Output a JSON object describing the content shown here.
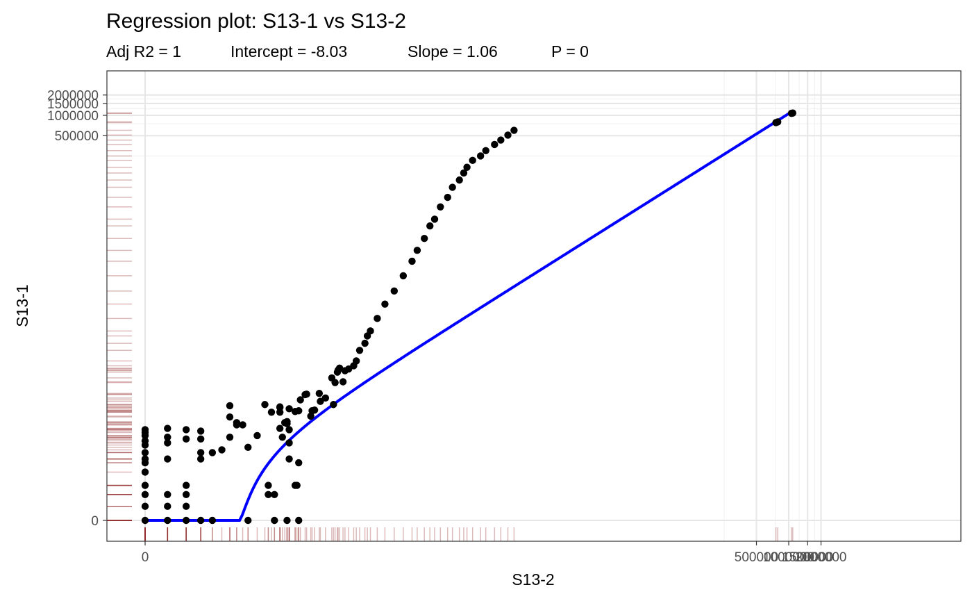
{
  "chart_data": {
    "type": "scatter",
    "title": "Regression plot: S13-1 vs S13-2",
    "subtitle": {
      "adj_r2": "Adj R2 =  1",
      "intercept": "Intercept =  -8.03",
      "slope": "Slope =  1.06",
      "p_value": "P =  0"
    },
    "xlabel": "S13-2",
    "ylabel": "S13-1",
    "scale": "pseudo-log (asinh)",
    "grid": true,
    "legend": "none",
    "x_ticks": [
      {
        "value": 0,
        "label": "0"
      },
      {
        "value": 500000,
        "label": "500000"
      },
      {
        "value": 1000000,
        "label": "1000000"
      },
      {
        "value": 1500000,
        "label": "1500000"
      },
      {
        "value": 2000000,
        "label": "2000000"
      }
    ],
    "y_ticks": [
      {
        "value": 0,
        "label": "0"
      },
      {
        "value": 500000,
        "label": "500000"
      },
      {
        "value": 1000000,
        "label": "1000000"
      },
      {
        "value": 1500000,
        "label": "1500000"
      },
      {
        "value": 2000000,
        "label": "2000000"
      }
    ],
    "regression_line": {
      "intercept": -8.03,
      "slope": 1.06,
      "color": "#0000ff"
    },
    "colors": {
      "points": "#000000",
      "rug": "#8b1a1a",
      "line": "#0000ff"
    },
    "points": [
      [
        0,
        0
      ],
      [
        0,
        1
      ],
      [
        0,
        2
      ],
      [
        0,
        3
      ],
      [
        0,
        5
      ],
      [
        0,
        7
      ],
      [
        0,
        8
      ],
      [
        0,
        10
      ],
      [
        0,
        13
      ],
      [
        0,
        15
      ],
      [
        0,
        18
      ],
      [
        0,
        20
      ],
      [
        0,
        22
      ],
      [
        1,
        0
      ],
      [
        1,
        1
      ],
      [
        1,
        2
      ],
      [
        1,
        8
      ],
      [
        1,
        14
      ],
      [
        1,
        17
      ],
      [
        1,
        23
      ],
      [
        2,
        0
      ],
      [
        2,
        1
      ],
      [
        2,
        2
      ],
      [
        2,
        3
      ],
      [
        2,
        16
      ],
      [
        2,
        22
      ],
      [
        3,
        0
      ],
      [
        3,
        8
      ],
      [
        3,
        10
      ],
      [
        3,
        16
      ],
      [
        3,
        21
      ],
      [
        4,
        0
      ],
      [
        4,
        10
      ],
      [
        5,
        11
      ],
      [
        6,
        17
      ],
      [
        6,
        34
      ],
      [
        6,
        50
      ],
      [
        7,
        28
      ],
      [
        7,
        26
      ],
      [
        8,
        26
      ],
      [
        9,
        0
      ],
      [
        9,
        12
      ],
      [
        11,
        18
      ],
      [
        14,
        2
      ],
      [
        14,
        3
      ],
      [
        13,
        52
      ],
      [
        15,
        40
      ],
      [
        16,
        2
      ],
      [
        16,
        0
      ],
      [
        18,
        40
      ],
      [
        18,
        23
      ],
      [
        18,
        47
      ],
      [
        18,
        48
      ],
      [
        21,
        0
      ],
      [
        21,
        27
      ],
      [
        22,
        22
      ],
      [
        22,
        45
      ],
      [
        19,
        17
      ],
      [
        20,
        28
      ],
      [
        21,
        29
      ],
      [
        22,
        8
      ],
      [
        22,
        14
      ],
      [
        27,
        0
      ],
      [
        25,
        3
      ],
      [
        26,
        3
      ],
      [
        25,
        41
      ],
      [
        27,
        7
      ],
      [
        27,
        42
      ],
      [
        28,
        61
      ],
      [
        31,
        73
      ],
      [
        32,
        74
      ],
      [
        35,
        35
      ],
      [
        36,
        42
      ],
      [
        38,
        43
      ],
      [
        42,
        76
      ],
      [
        43,
        58
      ],
      [
        48,
        65
      ],
      [
        55,
        129
      ],
      [
        57,
        52
      ],
      [
        59,
        110
      ],
      [
        62,
        157
      ],
      [
        63,
        168
      ],
      [
        65,
        180
      ],
      [
        70,
        113
      ],
      [
        73,
        165
      ],
      [
        79,
        175
      ],
      [
        88,
        195
      ],
      [
        93,
        230
      ],
      [
        100,
        330
      ],
      [
        112,
        420
      ],
      [
        118,
        540
      ],
      [
        126,
        640
      ],
      [
        146,
        980
      ],
      [
        172,
        1600
      ],
      [
        210,
        2500
      ],
      [
        255,
        4200
      ],
      [
        308,
        6900
      ],
      [
        344,
        10000
      ],
      [
        401,
        15000
      ],
      [
        452,
        23000
      ],
      [
        500,
        29000
      ],
      [
        566,
        44000
      ],
      [
        661,
        61000
      ],
      [
        733,
        86000
      ],
      [
        851,
        110000
      ],
      [
        934,
        140000
      ],
      [
        1001,
        170000
      ],
      [
        1130,
        215000
      ],
      [
        1340,
        250000
      ],
      [
        1500,
        300000
      ],
      [
        1810,
        370000
      ],
      [
        2070,
        430000
      ],
      [
        2410,
        510000
      ],
      [
        2750,
        600000
      ],
      [
        760000,
        780000
      ],
      [
        790000,
        800000
      ],
      [
        1060000,
        1070000
      ],
      [
        1090000,
        1080000
      ]
    ]
  }
}
